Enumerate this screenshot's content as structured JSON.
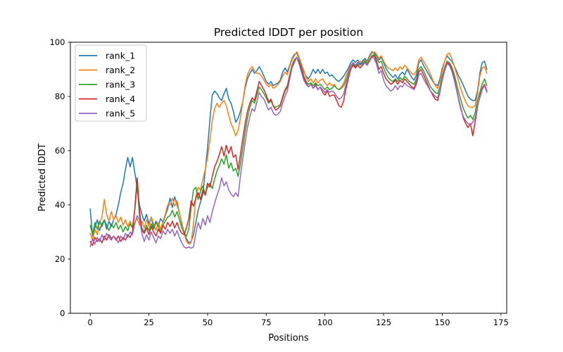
{
  "figure": {
    "title": "Predicted lDDT per position",
    "xlabel": "Positions",
    "ylabel": "Predicted lDDT"
  },
  "chart_data": {
    "type": "line",
    "title": "Predicted lDDT per position",
    "xlabel": "Positions",
    "ylabel": "Predicted lDDT",
    "xlim": [
      -8.45,
      177.45
    ],
    "ylim": [
      0,
      100
    ],
    "xticks": [
      0,
      25,
      50,
      75,
      100,
      125,
      150,
      175
    ],
    "yticks": [
      0,
      20,
      40,
      60,
      80,
      100
    ],
    "grid": false,
    "legend_position": "upper left",
    "x_start": 0,
    "x_step": 1,
    "n_points": 170,
    "series": [
      {
        "name": "rank_1",
        "color": "#1f77b4",
        "values": [
          38.5,
          28.5,
          31.5,
          34.5,
          30.5,
          33.0,
          34.5,
          31.0,
          34.0,
          32.0,
          34.5,
          36.5,
          40.0,
          44.5,
          48.0,
          53.0,
          57.5,
          54.0,
          57.5,
          52.0,
          46.0,
          40.0,
          36.5,
          34.0,
          36.5,
          33.0,
          35.5,
          31.5,
          34.0,
          32.0,
          35.0,
          33.5,
          36.0,
          38.5,
          42.5,
          39.0,
          43.0,
          40.0,
          37.0,
          33.0,
          30.0,
          27.5,
          26.0,
          26.5,
          29.0,
          33.5,
          38.0,
          41.0,
          44.0,
          52.5,
          61.0,
          71.5,
          80.5,
          82.0,
          81.0,
          79.5,
          78.5,
          81.0,
          83.0,
          79.0,
          77.5,
          74.5,
          70.5,
          72.0,
          74.5,
          78.0,
          83.0,
          86.5,
          88.5,
          90.0,
          88.5,
          89.5,
          91.0,
          89.5,
          87.5,
          85.5,
          84.5,
          85.5,
          84.0,
          84.5,
          85.0,
          86.0,
          89.0,
          90.5,
          89.0,
          91.5,
          94.0,
          95.5,
          96.0,
          94.0,
          91.5,
          89.0,
          87.5,
          86.5,
          88.0,
          90.0,
          88.5,
          90.0,
          88.5,
          90.0,
          88.5,
          89.0,
          87.5,
          88.0,
          87.0,
          86.0,
          85.5,
          86.5,
          87.5,
          89.0,
          90.5,
          92.5,
          93.5,
          92.5,
          93.5,
          92.0,
          93.0,
          94.0,
          93.0,
          95.0,
          96.5,
          96.0,
          95.0,
          93.5,
          94.5,
          92.5,
          90.5,
          89.0,
          88.0,
          87.0,
          88.0,
          86.5,
          88.0,
          89.0,
          88.0,
          90.0,
          88.5,
          87.0,
          86.0,
          88.0,
          92.5,
          93.5,
          91.5,
          90.0,
          88.5,
          87.0,
          85.5,
          84.5,
          84.0,
          86.5,
          90.5,
          93.0,
          95.0,
          94.0,
          93.0,
          91.5,
          89.5,
          87.5,
          86.0,
          84.0,
          82.0,
          80.0,
          79.0,
          78.5,
          78.5,
          82.0,
          88.5,
          92.5,
          93.0,
          90.0
        ]
      },
      {
        "name": "rank_2",
        "color": "#ff7f0e",
        "values": [
          29.5,
          27.0,
          31.0,
          29.0,
          33.5,
          35.5,
          42.0,
          36.5,
          34.0,
          37.5,
          34.5,
          36.0,
          33.5,
          35.5,
          32.5,
          34.5,
          32.0,
          34.0,
          31.5,
          33.5,
          35.0,
          32.5,
          34.0,
          31.5,
          34.5,
          32.0,
          35.5,
          33.0,
          30.5,
          33.5,
          31.0,
          34.0,
          36.5,
          40.0,
          40.0,
          42.5,
          39.5,
          41.5,
          37.0,
          33.5,
          29.5,
          26.5,
          25.5,
          26.0,
          33.0,
          43.0,
          46.5,
          45.5,
          49.5,
          53.0,
          57.5,
          64.0,
          71.0,
          75.5,
          77.5,
          76.0,
          77.5,
          78.5,
          76.5,
          73.0,
          70.0,
          68.0,
          65.5,
          67.5,
          72.0,
          78.0,
          84.0,
          88.0,
          90.0,
          91.0,
          89.5,
          88.5,
          88.5,
          87.5,
          86.0,
          84.5,
          83.5,
          84.5,
          83.0,
          83.5,
          84.5,
          85.5,
          87.5,
          89.0,
          88.0,
          91.0,
          93.5,
          95.0,
          96.5,
          94.5,
          92.0,
          89.5,
          87.0,
          85.5,
          86.5,
          85.0,
          86.5,
          85.0,
          86.0,
          86.5,
          85.0,
          84.0,
          85.0,
          84.0,
          84.5,
          83.0,
          82.5,
          83.5,
          85.0,
          87.5,
          89.5,
          91.5,
          92.5,
          91.5,
          92.5,
          93.0,
          92.0,
          93.5,
          92.5,
          94.5,
          96.0,
          96.5,
          95.5,
          94.0,
          95.0,
          93.0,
          91.5,
          90.5,
          90.0,
          89.5,
          90.5,
          89.5,
          91.0,
          90.0,
          91.5,
          90.5,
          89.5,
          88.5,
          88.0,
          89.5,
          93.5,
          94.5,
          93.0,
          91.5,
          90.0,
          88.0,
          86.0,
          84.0,
          83.0,
          85.5,
          89.5,
          93.0,
          95.5,
          96.0,
          94.0,
          91.5,
          88.5,
          85.5,
          82.5,
          80.0,
          78.0,
          76.5,
          76.0,
          76.0,
          76.5,
          81.0,
          87.5,
          90.5,
          91.0,
          88.5
        ]
      },
      {
        "name": "rank_3",
        "color": "#2ca02c",
        "values": [
          32.5,
          29.0,
          33.5,
          31.0,
          34.0,
          32.0,
          34.5,
          32.5,
          30.5,
          33.0,
          31.5,
          33.5,
          31.0,
          32.5,
          30.0,
          32.0,
          30.5,
          33.0,
          31.5,
          38.0,
          47.5,
          36.0,
          31.5,
          30.0,
          32.5,
          30.5,
          33.0,
          31.0,
          33.5,
          32.0,
          30.0,
          32.5,
          34.0,
          35.5,
          36.0,
          38.0,
          35.5,
          37.5,
          34.5,
          31.5,
          29.5,
          28.5,
          31.0,
          39.0,
          45.5,
          46.5,
          42.0,
          45.0,
          47.0,
          44.0,
          46.5,
          48.0,
          46.0,
          49.5,
          52.5,
          54.5,
          57.0,
          55.0,
          58.5,
          53.5,
          55.5,
          52.5,
          53.5,
          50.5,
          55.0,
          61.0,
          67.0,
          72.0,
          76.0,
          78.5,
          77.5,
          80.5,
          83.5,
          82.5,
          81.0,
          79.5,
          77.5,
          78.5,
          76.5,
          76.0,
          76.5,
          77.0,
          80.0,
          82.5,
          84.0,
          88.0,
          91.5,
          93.5,
          94.5,
          93.0,
          90.5,
          87.5,
          85.5,
          84.5,
          85.0,
          84.0,
          85.0,
          84.0,
          84.5,
          83.5,
          82.5,
          83.5,
          82.5,
          83.0,
          84.0,
          83.0,
          82.5,
          83.0,
          84.0,
          86.0,
          88.5,
          91.0,
          92.0,
          91.0,
          92.0,
          91.5,
          92.5,
          93.0,
          92.0,
          93.5,
          95.0,
          95.5,
          94.0,
          92.5,
          93.0,
          90.5,
          88.5,
          87.0,
          86.0,
          85.5,
          86.5,
          85.5,
          87.0,
          86.0,
          87.5,
          86.5,
          85.5,
          85.0,
          84.5,
          86.5,
          90.0,
          91.0,
          89.5,
          87.5,
          85.5,
          83.5,
          82.5,
          81.5,
          81.0,
          83.5,
          87.5,
          90.5,
          93.0,
          92.5,
          91.0,
          88.5,
          85.0,
          81.5,
          78.5,
          75.5,
          73.5,
          72.0,
          73.0,
          71.5,
          74.0,
          78.5,
          81.5,
          84.5,
          86.5,
          84.0
        ]
      },
      {
        "name": "rank_4",
        "color": "#d62728",
        "values": [
          26.5,
          25.0,
          28.0,
          26.5,
          27.5,
          26.0,
          28.5,
          27.0,
          29.0,
          27.5,
          28.5,
          27.0,
          28.5,
          26.5,
          28.0,
          27.0,
          29.0,
          28.0,
          30.0,
          38.5,
          50.0,
          38.0,
          30.5,
          29.5,
          31.5,
          29.0,
          32.0,
          30.0,
          28.5,
          31.0,
          29.5,
          32.5,
          31.0,
          33.5,
          32.0,
          34.0,
          31.5,
          33.5,
          31.0,
          29.5,
          29.0,
          31.5,
          35.0,
          41.5,
          39.5,
          42.5,
          44.5,
          42.0,
          45.5,
          43.5,
          48.0,
          46.5,
          50.5,
          54.0,
          56.0,
          58.5,
          61.5,
          58.0,
          62.0,
          59.0,
          61.5,
          57.5,
          58.5,
          53.0,
          58.5,
          64.5,
          70.0,
          74.5,
          77.5,
          79.5,
          78.5,
          82.0,
          85.5,
          84.0,
          82.5,
          80.5,
          78.0,
          79.0,
          76.5,
          75.0,
          75.5,
          76.5,
          79.5,
          82.0,
          83.5,
          87.5,
          91.0,
          93.0,
          94.5,
          92.5,
          90.0,
          87.0,
          85.0,
          83.5,
          84.5,
          83.0,
          84.5,
          82.5,
          83.5,
          81.5,
          80.5,
          82.0,
          80.0,
          80.5,
          80.5,
          78.5,
          76.5,
          76.0,
          78.5,
          83.0,
          86.5,
          90.0,
          91.5,
          90.5,
          91.5,
          90.5,
          91.5,
          92.5,
          91.5,
          93.0,
          94.5,
          95.0,
          93.0,
          90.0,
          91.0,
          88.5,
          86.5,
          85.5,
          84.5,
          85.0,
          86.0,
          84.5,
          86.0,
          85.0,
          86.5,
          85.5,
          84.5,
          83.5,
          83.0,
          85.5,
          89.0,
          90.0,
          88.0,
          86.0,
          84.0,
          82.0,
          80.5,
          79.0,
          78.5,
          81.5,
          86.5,
          90.0,
          92.5,
          92.0,
          90.0,
          87.0,
          83.0,
          79.0,
          75.5,
          72.0,
          70.0,
          68.5,
          70.0,
          65.5,
          70.5,
          76.0,
          80.0,
          83.0,
          84.5,
          82.0
        ]
      },
      {
        "name": "rank_5",
        "color": "#9467bd",
        "values": [
          24.5,
          27.5,
          25.5,
          28.0,
          26.5,
          29.0,
          27.0,
          29.5,
          28.0,
          27.0,
          28.5,
          27.5,
          26.0,
          28.5,
          27.0,
          29.5,
          28.0,
          30.0,
          29.0,
          33.0,
          36.0,
          34.5,
          29.5,
          26.5,
          29.0,
          27.0,
          30.0,
          28.0,
          26.0,
          28.5,
          27.5,
          30.5,
          29.0,
          31.0,
          29.5,
          31.0,
          28.5,
          30.5,
          28.0,
          26.0,
          24.5,
          24.0,
          24.5,
          24.0,
          24.5,
          29.5,
          33.5,
          31.0,
          35.0,
          32.5,
          36.0,
          33.5,
          37.5,
          40.5,
          43.5,
          46.0,
          50.0,
          47.0,
          48.5,
          45.5,
          44.0,
          43.0,
          44.5,
          43.0,
          50.5,
          57.0,
          63.0,
          68.5,
          72.5,
          75.5,
          74.5,
          78.0,
          81.5,
          80.0,
          79.0,
          77.0,
          75.0,
          76.0,
          74.0,
          73.0,
          73.5,
          74.5,
          77.5,
          80.0,
          82.0,
          86.5,
          90.5,
          92.5,
          94.5,
          92.0,
          89.0,
          86.0,
          84.5,
          83.5,
          84.5,
          83.0,
          84.0,
          82.5,
          83.5,
          82.5,
          81.5,
          82.5,
          81.5,
          82.0,
          81.5,
          80.0,
          79.0,
          79.5,
          81.0,
          84.5,
          87.5,
          91.0,
          92.5,
          91.5,
          92.5,
          91.5,
          92.0,
          92.5,
          91.5,
          93.0,
          94.5,
          94.0,
          92.0,
          88.5,
          89.5,
          86.0,
          84.0,
          83.0,
          82.0,
          82.5,
          84.0,
          82.5,
          84.0,
          83.5,
          85.0,
          84.0,
          83.5,
          83.0,
          82.5,
          84.5,
          88.0,
          88.5,
          86.5,
          85.0,
          83.5,
          82.0,
          81.0,
          80.0,
          79.5,
          82.0,
          86.0,
          89.5,
          92.0,
          91.5,
          89.5,
          86.5,
          82.5,
          78.5,
          75.0,
          72.5,
          71.0,
          70.0,
          69.5,
          70.5,
          72.0,
          76.5,
          79.5,
          82.5,
          84.0,
          81.5
        ]
      }
    ]
  },
  "legend": {
    "items": [
      "rank_1",
      "rank_2",
      "rank_3",
      "rank_4",
      "rank_5"
    ]
  },
  "style": {
    "axis_color": "#000000",
    "legend_border_color": "#c8c8c8",
    "background": "#ffffff"
  }
}
